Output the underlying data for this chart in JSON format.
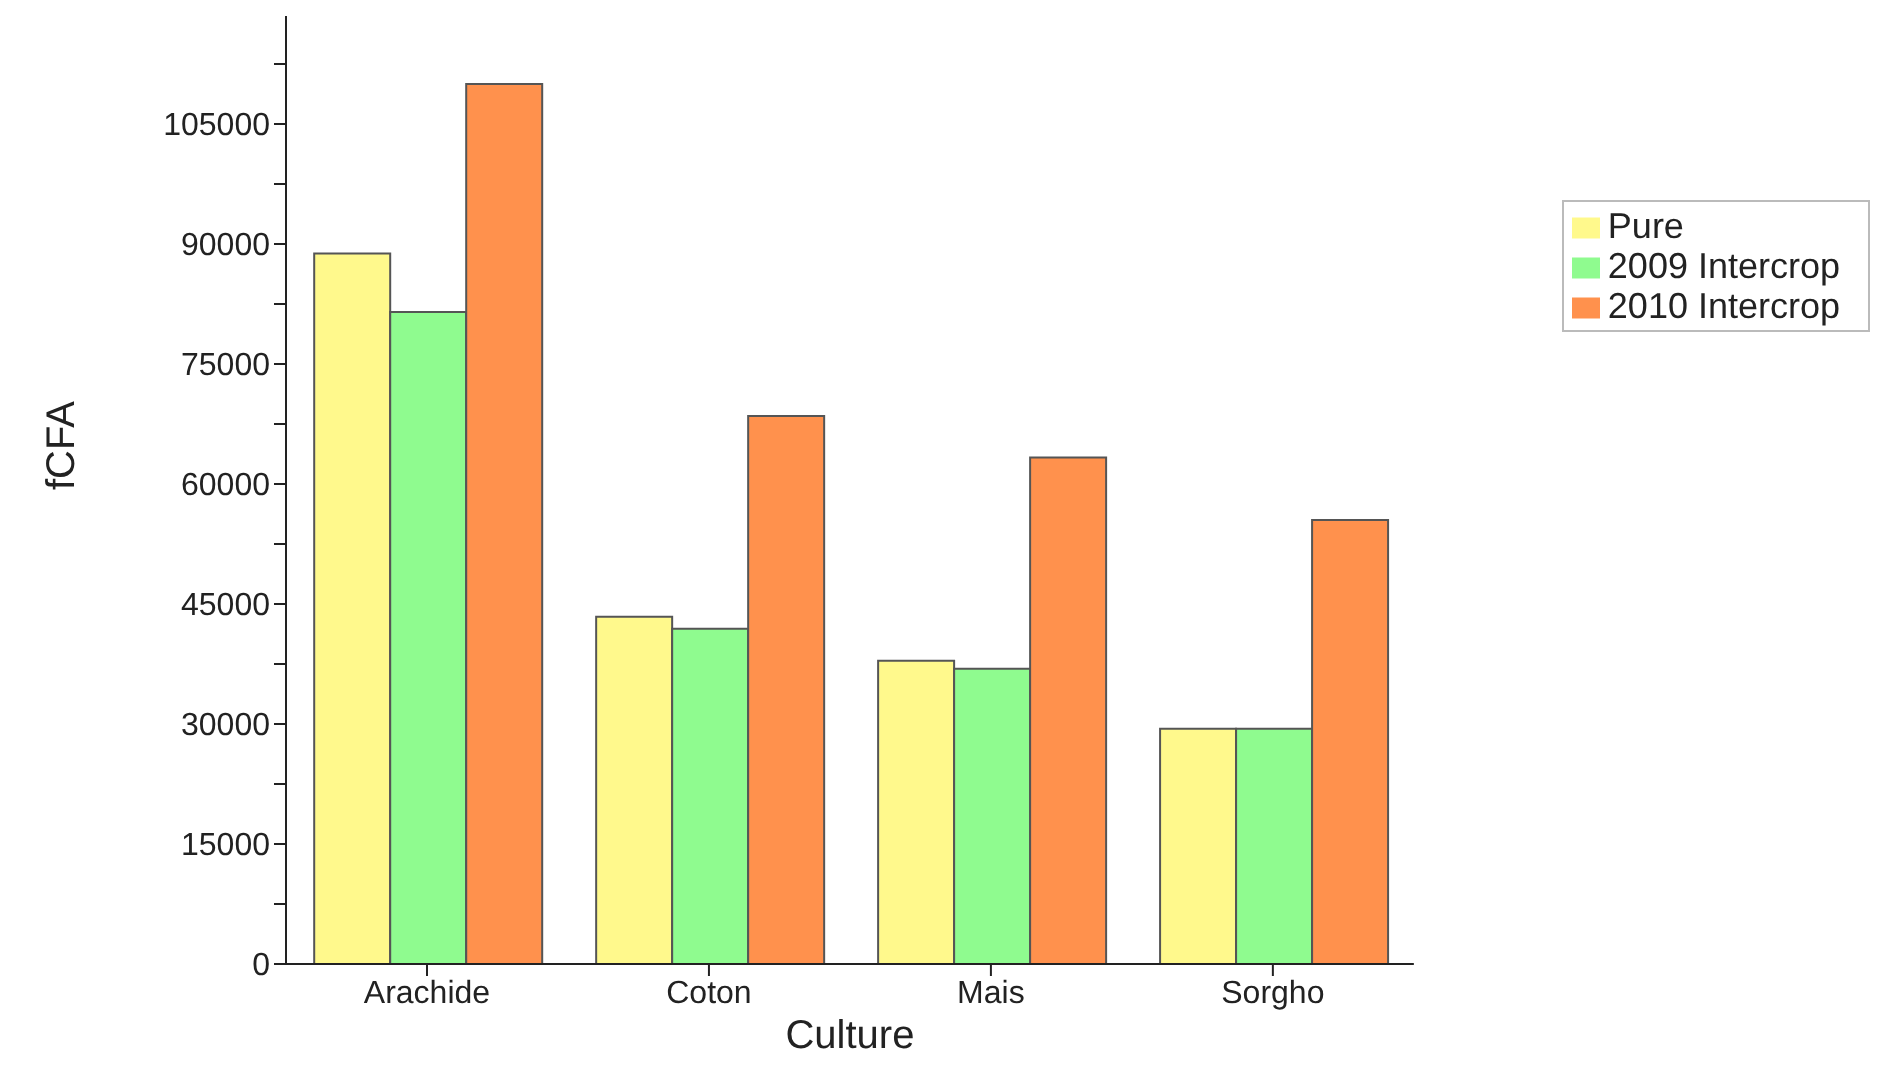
{
  "chart_data": {
    "type": "bar",
    "xlabel": "Culture",
    "ylabel": "fCFA",
    "categories": [
      "Arachide",
      "Coton",
      "Mais",
      "Sorgho"
    ],
    "series": [
      {
        "name": "Pure",
        "color": "#fff98c",
        "values": [
          88800,
          43400,
          37900,
          29400
        ]
      },
      {
        "name": "2009 Intercrop",
        "color": "#8ffb8f",
        "values": [
          81500,
          41900,
          36900,
          29400
        ]
      },
      {
        "name": "2010 Intercrop",
        "color": "#ff914d",
        "values": [
          110000,
          68500,
          63300,
          55500
        ]
      }
    ],
    "ylim": [
      0,
      118500
    ],
    "yticks": [
      0,
      {
        "value": 7500,
        "label": null
      },
      15000,
      {
        "value": 22500,
        "label": null
      },
      30000,
      {
        "value": 37500,
        "label": null
      },
      45000,
      {
        "value": 52500,
        "label": null
      },
      60000,
      {
        "value": 67500,
        "label": null
      },
      75000,
      {
        "value": 82500,
        "label": null
      },
      90000,
      {
        "value": 97500,
        "label": null
      },
      105000,
      {
        "value": 112500,
        "label": null
      }
    ],
    "grid": false,
    "legend": "top right"
  }
}
